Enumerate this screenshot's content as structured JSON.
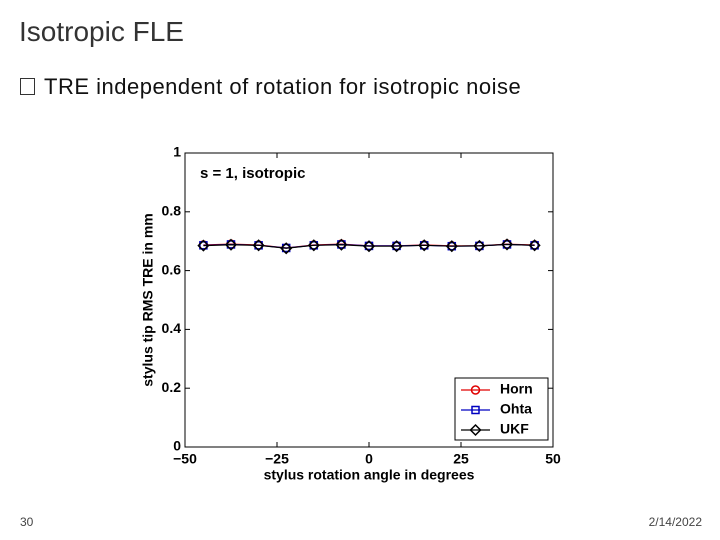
{
  "slide": {
    "title": "Isotropic FLE",
    "bullet": "TRE independent of rotation for isotropic noise",
    "page_number": "30",
    "date": "2/14/2022"
  },
  "chart_data": {
    "type": "line",
    "annotation": "s = 1, isotropic",
    "x_label": "stylus rotation angle in degrees",
    "y_label": "stylus tip RMS TRE in mm",
    "x": [
      -45,
      -37.5,
      -30,
      -22.5,
      -15,
      -7.5,
      0,
      7.5,
      15,
      22.5,
      30,
      37.5,
      45
    ],
    "series": [
      {
        "name": "Horn",
        "color": "#e00000",
        "marker": "circle",
        "values": [
          0.687,
          0.69,
          0.687,
          0.677,
          0.687,
          0.69,
          0.684,
          0.684,
          0.687,
          0.684,
          0.684,
          0.69,
          0.687
        ]
      },
      {
        "name": "Ohta",
        "color": "#0000c0",
        "marker": "square",
        "values": [
          0.686,
          0.689,
          0.686,
          0.677,
          0.686,
          0.689,
          0.684,
          0.684,
          0.686,
          0.683,
          0.684,
          0.689,
          0.686
        ]
      },
      {
        "name": "UKF",
        "color": "#000000",
        "marker": "diamond",
        "values": [
          0.685,
          0.688,
          0.686,
          0.676,
          0.686,
          0.688,
          0.683,
          0.683,
          0.686,
          0.683,
          0.684,
          0.689,
          0.686
        ]
      }
    ],
    "xlim": [
      -50,
      50
    ],
    "xticks": [
      {
        "value": -50,
        "label": "−50"
      },
      {
        "value": -25,
        "label": "−25"
      },
      0,
      25,
      50
    ],
    "ylim": [
      0,
      1
    ],
    "yticks": [
      0,
      0.2,
      0.4,
      0.6,
      0.8,
      1
    ],
    "legend": "lower right"
  }
}
